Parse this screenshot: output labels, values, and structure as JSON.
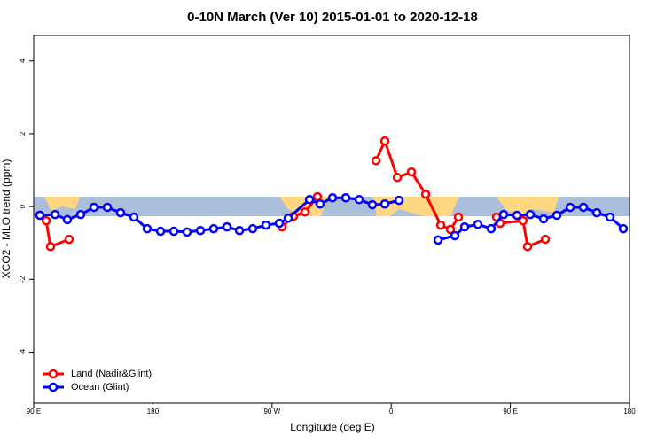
{
  "chart_data": {
    "type": "line",
    "title": "0-10N March (Ver 10)   2015-01-01 to 2020-12-18",
    "x_label": "Longitude (deg E)",
    "y_label": "XCO2 - MLO trend (ppm)",
    "xlim": [
      90,
      540
    ],
    "ylim": [
      -5.4,
      4.7
    ],
    "xticks": [
      {
        "value": 90,
        "label": "90 E"
      },
      180,
      {
        "value": 270,
        "label": "90 W"
      },
      {
        "value": 360,
        "label": "0"
      },
      {
        "value": 450,
        "label": "90 E"
      },
      {
        "value": 540,
        "label": "180"
      }
    ],
    "yticks": [
      -4,
      -2,
      0,
      2,
      4
    ],
    "legend": "bottom-left",
    "series": [
      {
        "name": "Land (Nadir&Glint)",
        "color": "#ff0000",
        "x": [
          94.7,
          99.4,
          102.7,
          116.8,
          null,
          277.5,
          286.2,
          294.9,
          304.3,
          null,
          348.5,
          355.2,
          364.6,
          375.3,
          386,
          397.4,
          404.7,
          410.8,
          null,
          439.5,
          442.2,
          459.6,
          463,
          476.4
        ],
        "values": [
          -0.24,
          -0.39,
          -1.1,
          -0.9,
          null,
          -0.56,
          -0.27,
          -0.15,
          0.27,
          null,
          1.26,
          1.8,
          0.8,
          0.95,
          0.34,
          -0.51,
          -0.63,
          -0.29,
          null,
          -0.29,
          -0.46,
          -0.39,
          -1.1,
          -0.9
        ]
      },
      {
        "name": "Ocean (Glint)",
        "color": "#0000ff",
        "x": [
          94.7,
          106.1,
          115.4,
          125.5,
          135.5,
          145.6,
          155.6,
          165.7,
          175.7,
          185.8,
          195.8,
          205.8,
          215.9,
          225.9,
          236,
          245.4,
          255.4,
          265.4,
          275.5,
          282.2,
          298.3,
          306.3,
          315.7,
          325.7,
          335.8,
          345.8,
          355.2,
          365.9,
          null,
          395.4,
          408.1,
          415.5,
          425.5,
          435.5,
          444.9,
          455,
          465,
          475.1,
          485.1,
          495.2,
          505.2,
          515.3,
          525.3,
          535.3
        ],
        "values": [
          -0.24,
          -0.22,
          -0.36,
          -0.22,
          -0.02,
          -0.02,
          -0.17,
          -0.29,
          -0.61,
          -0.68,
          -0.68,
          -0.7,
          -0.66,
          -0.61,
          -0.56,
          -0.66,
          -0.61,
          -0.51,
          -0.46,
          -0.32,
          0.19,
          0.07,
          0.24,
          0.24,
          0.19,
          0.05,
          0.07,
          0.17,
          null,
          -0.92,
          -0.8,
          -0.56,
          -0.49,
          -0.61,
          -0.22,
          -0.24,
          -0.22,
          -0.34,
          -0.24,
          -0.02,
          -0.02,
          -0.17,
          -0.29,
          -0.61
        ]
      }
    ]
  }
}
